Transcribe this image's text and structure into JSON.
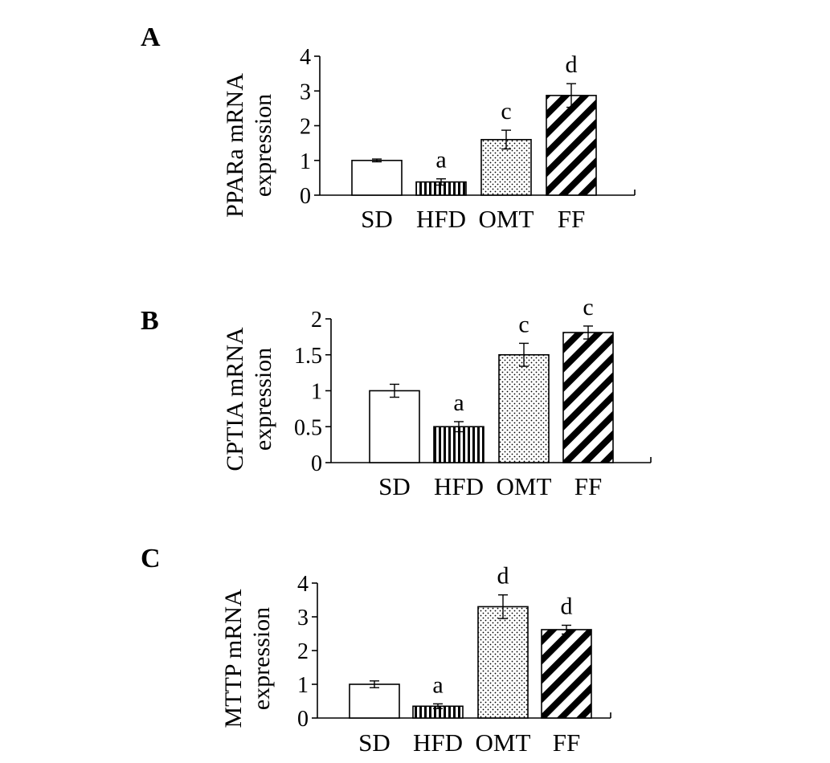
{
  "chart_data": [
    {
      "panel_label": "A",
      "type": "bar",
      "categories": [
        "SD",
        "HFD",
        "OMT",
        "FF"
      ],
      "values": [
        1.0,
        0.38,
        1.6,
        2.87
      ],
      "errors": [
        0.04,
        0.09,
        0.27,
        0.34
      ],
      "significance": [
        "",
        "a",
        "c",
        "d"
      ],
      "ylabel_line1": "PPARa mRNA",
      "ylabel_line2": "expression",
      "ylim": [
        0,
        4
      ],
      "yticks": [
        0,
        1,
        2,
        3,
        4
      ],
      "ytick_labels": [
        "0",
        "1",
        "2",
        "3",
        "4"
      ],
      "patterns": [
        "blank",
        "vertical",
        "dots",
        "diagonal"
      ],
      "grid": false
    },
    {
      "panel_label": "B",
      "type": "bar",
      "categories": [
        "SD",
        "HFD",
        "OMT",
        "FF"
      ],
      "values": [
        1.0,
        0.5,
        1.5,
        1.81
      ],
      "errors": [
        0.09,
        0.07,
        0.16,
        0.09
      ],
      "significance": [
        "",
        "a",
        "c",
        "c"
      ],
      "ylabel_line1": "CPTIA mRNA",
      "ylabel_line2": "expression",
      "ylim": [
        0,
        2
      ],
      "yticks": [
        0,
        0.5,
        1,
        1.5,
        2
      ],
      "ytick_labels": [
        "0",
        "0.5",
        "1",
        "1.5",
        "2"
      ],
      "patterns": [
        "blank",
        "vertical",
        "dots",
        "diagonal"
      ],
      "grid": false
    },
    {
      "panel_label": "C",
      "type": "bar",
      "categories": [
        "SD",
        "HFD",
        "OMT",
        "FF"
      ],
      "values": [
        1.0,
        0.35,
        3.3,
        2.62
      ],
      "errors": [
        0.1,
        0.07,
        0.35,
        0.13
      ],
      "significance": [
        "",
        "a",
        "d",
        "d"
      ],
      "ylabel_line1": "MTTP mRNA",
      "ylabel_line2": "expression",
      "ylim": [
        0,
        4
      ],
      "yticks": [
        0,
        1,
        2,
        3,
        4
      ],
      "ytick_labels": [
        "0",
        "1",
        "2",
        "3",
        "4"
      ],
      "patterns": [
        "blank",
        "vertical",
        "dots",
        "diagonal"
      ],
      "grid": false
    }
  ]
}
